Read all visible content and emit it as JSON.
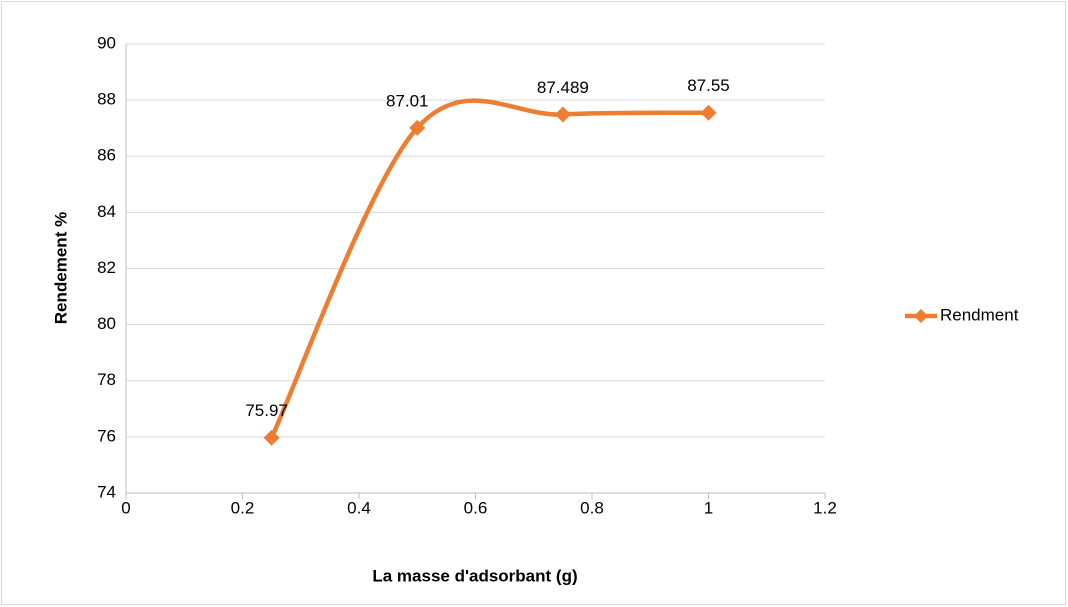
{
  "chart_data": {
    "type": "line",
    "x_label": "La masse d'adsorbant (g)",
    "y_label": "Rendement %",
    "x": [
      0.25,
      0.5,
      0.75,
      1
    ],
    "series": [
      {
        "name": "Rendment",
        "color": "#ed7d31",
        "values": [
          75.97,
          87.01,
          87.489,
          87.55
        ]
      }
    ],
    "xlim": [
      0,
      1.2
    ],
    "xticks": [
      0,
      0.2,
      0.4,
      0.6,
      0.8,
      1,
      1.2
    ],
    "ylim": [
      74,
      90
    ],
    "yticks": [
      74,
      76,
      78,
      80,
      82,
      84,
      86,
      88,
      90
    ],
    "grid": true,
    "smooth": true,
    "legend": "right"
  }
}
